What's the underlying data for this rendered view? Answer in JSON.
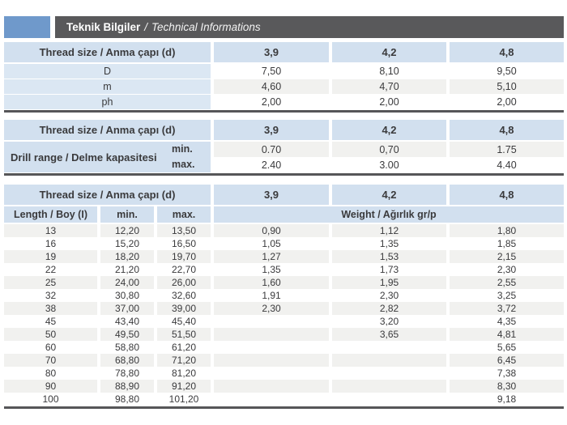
{
  "title": {
    "tr": "Teknik Bilgiler",
    "sep": "/",
    "en": "Technical Informations"
  },
  "colors": {
    "accent_blue": "#6f99cb",
    "bar_gray": "#59595b",
    "header_blue": "#d2e0ef",
    "label_blue": "#dbe7f3",
    "stripe_gray": "#f1f1ef",
    "rule_dark": "#565658"
  },
  "shared": {
    "thread_label": "Thread size / Anma çapı (d)",
    "sizes": [
      "3,9",
      "4,2",
      "4,8"
    ]
  },
  "table1": {
    "rows": [
      {
        "label": "D",
        "values": [
          "7,50",
          "8,10",
          "9,50"
        ]
      },
      {
        "label": "m",
        "values": [
          "4,60",
          "4,70",
          "5,10"
        ]
      },
      {
        "label": "ph",
        "values": [
          "2,00",
          "2,00",
          "2,00"
        ]
      }
    ]
  },
  "table2": {
    "label": "Drill range / Delme kapasitesi",
    "min_label": "min.",
    "max_label": "max.",
    "min_values": [
      "0.70",
      "0,70",
      "1.75"
    ],
    "max_values": [
      "2.40",
      "3.00",
      "4.40"
    ]
  },
  "table3": {
    "length_header": "Length / Boy (I)",
    "min_header": "min.",
    "max_header": "max.",
    "weight_header": "Weight / Ağırlık gr/p",
    "rows": [
      {
        "length": "13",
        "min": "12,20",
        "max": "13,50",
        "w": [
          "0,90",
          "1,12",
          "1,80"
        ]
      },
      {
        "length": "16",
        "min": "15,20",
        "max": "16,50",
        "w": [
          "1,05",
          "1,35",
          "1,85"
        ]
      },
      {
        "length": "19",
        "min": "18,20",
        "max": "19,70",
        "w": [
          "1,27",
          "1,53",
          "2,15"
        ]
      },
      {
        "length": "22",
        "min": "21,20",
        "max": "22,70",
        "w": [
          "1,35",
          "1,73",
          "2,30"
        ]
      },
      {
        "length": "25",
        "min": "24,00",
        "max": "26,00",
        "w": [
          "1,60",
          "1,95",
          "2,55"
        ]
      },
      {
        "length": "32",
        "min": "30,80",
        "max": "32,60",
        "w": [
          "1,91",
          "2,30",
          "3,25"
        ]
      },
      {
        "length": "38",
        "min": "37,00",
        "max": "39,00",
        "w": [
          "2,30",
          "2,82",
          "3,72"
        ]
      },
      {
        "length": "45",
        "min": "43,40",
        "max": "45,40",
        "w": [
          "",
          "3,20",
          "4,35"
        ]
      },
      {
        "length": "50",
        "min": "49,50",
        "max": "51,50",
        "w": [
          "",
          "3,65",
          "4,81"
        ]
      },
      {
        "length": "60",
        "min": "58,80",
        "max": "61,20",
        "w": [
          "",
          "",
          "5,65"
        ]
      },
      {
        "length": "70",
        "min": "68,80",
        "max": "71,20",
        "w": [
          "",
          "",
          "6,45"
        ]
      },
      {
        "length": "80",
        "min": "78,80",
        "max": "81,20",
        "w": [
          "",
          "",
          "7,38"
        ]
      },
      {
        "length": "90",
        "min": "88,90",
        "max": "91,20",
        "w": [
          "",
          "",
          "8,30"
        ]
      },
      {
        "length": "100",
        "min": "98,80",
        "max": "101,20",
        "w": [
          "",
          "",
          "9,18"
        ]
      }
    ]
  }
}
